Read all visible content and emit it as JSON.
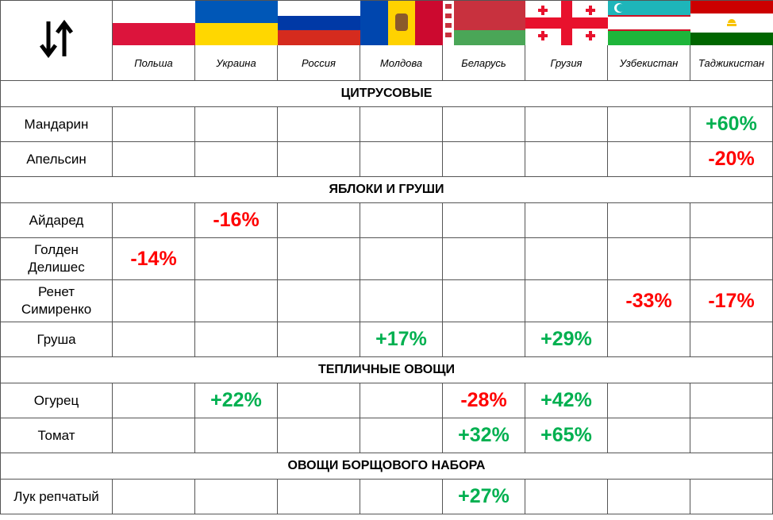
{
  "countries": [
    "Польша",
    "Украина",
    "Россия",
    "Молдова",
    "Беларусь",
    "Грузия",
    "Узбекистан",
    "Таджикистан"
  ],
  "sections": [
    {
      "title": "ЦИТРУСОВЫЕ",
      "rows": [
        {
          "name": "Мандарин",
          "values": [
            null,
            null,
            null,
            null,
            null,
            null,
            null,
            "+60%"
          ]
        },
        {
          "name": "Апельсин",
          "values": [
            null,
            null,
            null,
            null,
            null,
            null,
            null,
            "-20%"
          ]
        }
      ]
    },
    {
      "title": "ЯБЛОКИ И ГРУШИ",
      "rows": [
        {
          "name": "Айдаред",
          "values": [
            null,
            "-16%",
            null,
            null,
            null,
            null,
            null,
            null
          ]
        },
        {
          "name": [
            "Голден",
            "Делишес"
          ],
          "values": [
            "-14%",
            null,
            null,
            null,
            null,
            null,
            null,
            null
          ]
        },
        {
          "name": [
            "Ренет",
            "Симиренко"
          ],
          "values": [
            null,
            null,
            null,
            null,
            null,
            null,
            "-33%",
            "-17%"
          ]
        },
        {
          "name": "Груша",
          "values": [
            null,
            null,
            null,
            "+17%",
            null,
            "+29%",
            null,
            null
          ]
        }
      ]
    },
    {
      "title": "ТЕПЛИЧНЫЕ ОВОЩИ",
      "rows": [
        {
          "name": "Огурец",
          "values": [
            null,
            "+22%",
            null,
            null,
            "-28%",
            "+42%",
            null,
            null
          ]
        },
        {
          "name": "Томат",
          "values": [
            null,
            null,
            null,
            null,
            "+32%",
            "+65%",
            null,
            null
          ]
        }
      ]
    },
    {
      "title": "ОВОЩИ БОРЩОВОГО НАБОРА",
      "rows": [
        {
          "name": "Лук репчатый",
          "values": [
            null,
            null,
            null,
            null,
            "+27%",
            null,
            null,
            null
          ]
        }
      ]
    }
  ]
}
